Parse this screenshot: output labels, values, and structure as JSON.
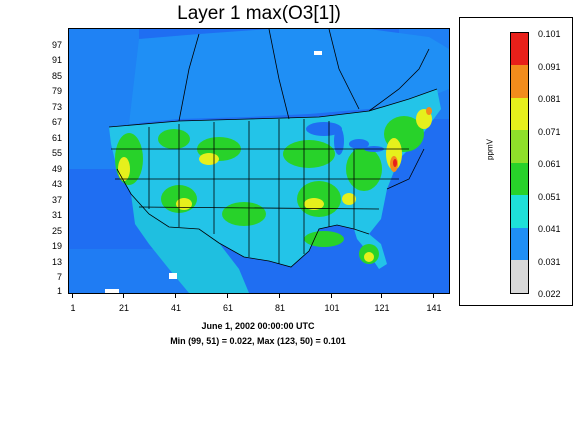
{
  "title": "Layer 1 max(O3[1])",
  "date_line": "June 1, 2002 00:00:00 UTC",
  "minmax_line": "Min (99, 51) = 0.022, Max (123, 50) = 0.101",
  "y_ticks": [
    "97",
    "91",
    "85",
    "79",
    "73",
    "67",
    "61",
    "55",
    "49",
    "43",
    "37",
    "31",
    "25",
    "19",
    "13",
    "7",
    "1"
  ],
  "x_ticks": [
    "1",
    "21",
    "41",
    "61",
    "81",
    "101",
    "121",
    "141"
  ],
  "legend": {
    "unit": "ppmV",
    "labels": [
      "0.101",
      "0.091",
      "0.081",
      "0.071",
      "0.061",
      "0.051",
      "0.041",
      "0.031",
      "0.022"
    ],
    "colors": [
      "#e8201a",
      "#f28c1c",
      "#e6f01c",
      "#8fe02a",
      "#28d22a",
      "#1ee0d8",
      "#1f8ff5",
      "#1f5ee8",
      "#d8d8d8"
    ]
  },
  "colors": {
    "ocean": "#1f6ef2",
    "land_low": "#23c4e8",
    "land_mid": "#28d22a",
    "land_high": "#e6f01c",
    "boundary": "#000000"
  }
}
